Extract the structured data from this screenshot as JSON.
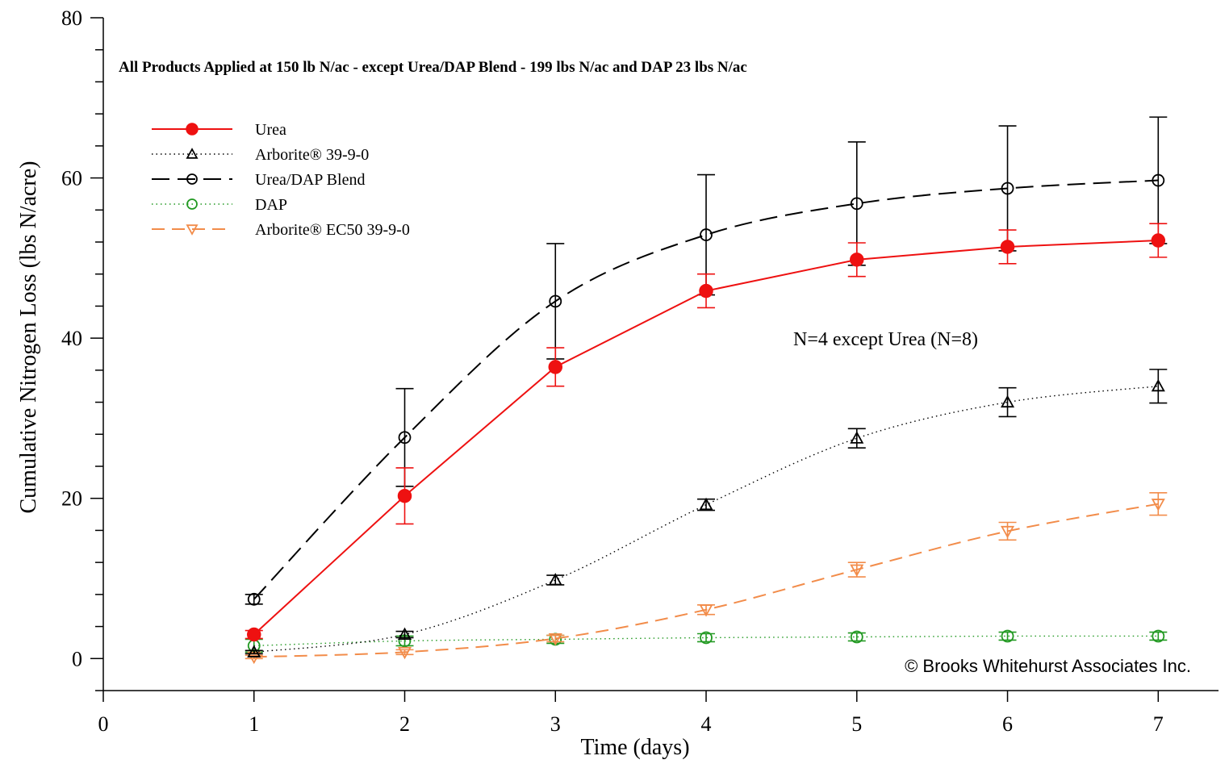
{
  "chart_data": {
    "type": "line",
    "title": "",
    "subtitle": "All Products Applied at 150 lb N/ac - except Urea/DAP Blend - 199 lbs N/ac and DAP 23 lbs N/ac",
    "xlabel": "Time (days)",
    "ylabel": "Cumulative Nitrogen Loss (lbs N/acre)",
    "xlim": [
      0,
      7.4
    ],
    "ylim": [
      -4,
      80
    ],
    "xticks": [
      0,
      1,
      2,
      3,
      4,
      5,
      6,
      7
    ],
    "yticks": [
      0,
      20,
      40,
      60,
      80
    ],
    "ytick_minor_step": 4,
    "grid": false,
    "legend_position": "top-left",
    "annotations": [
      {
        "text": "N=4 except Urea (N=8)",
        "x": 4.55,
        "y": 39.3
      },
      {
        "text": "© Brooks Whitehurst Associates Inc.",
        "x": 6.95,
        "y": -1.2
      }
    ],
    "series": [
      {
        "name": "Urea",
        "color": "#ee1111",
        "line_style": "solid",
        "marker": "circle-filled",
        "x": [
          1,
          2,
          3,
          4,
          5,
          6,
          7
        ],
        "y": [
          3.0,
          20.3,
          36.4,
          45.9,
          49.8,
          51.4,
          52.2
        ],
        "err": [
          0.5,
          3.5,
          2.4,
          2.1,
          2.1,
          2.1,
          2.1
        ]
      },
      {
        "name": "Arborite® 39-9-0",
        "color": "#000000",
        "line_style": "dotted",
        "marker": "triangle-up-open",
        "x": [
          1,
          2,
          3,
          4,
          5,
          6,
          7
        ],
        "y": [
          0.8,
          3.0,
          9.8,
          19.2,
          27.5,
          32.0,
          34.0
        ],
        "err": [
          0.2,
          0.4,
          0.6,
          0.7,
          1.2,
          1.8,
          2.1
        ]
      },
      {
        "name": "Urea/DAP Blend",
        "color": "#000000",
        "line_style": "long-dash",
        "marker": "circle-open",
        "x": [
          1,
          2,
          3,
          4,
          5,
          6,
          7
        ],
        "y": [
          7.4,
          27.6,
          44.6,
          52.9,
          56.8,
          58.7,
          59.7
        ],
        "err": [
          0.6,
          6.1,
          7.2,
          7.5,
          7.7,
          7.8,
          7.9
        ]
      },
      {
        "name": "DAP",
        "color": "#229922",
        "line_style": "dotted",
        "marker": "circle-open",
        "x": [
          1,
          2,
          3,
          4,
          5,
          6,
          7
        ],
        "y": [
          1.6,
          2.2,
          2.4,
          2.6,
          2.7,
          2.8,
          2.8
        ],
        "err": [
          0.8,
          0.6,
          0.5,
          0.5,
          0.5,
          0.5,
          0.5
        ]
      },
      {
        "name": "Arborite® EC50 39-9-0",
        "color": "#f28c4a",
        "line_style": "dashed",
        "marker": "triangle-down-open",
        "x": [
          1,
          2,
          3,
          4,
          5,
          6,
          7
        ],
        "y": [
          0.2,
          0.8,
          2.5,
          6.1,
          11.1,
          15.9,
          19.3
        ],
        "err": [
          0.2,
          0.3,
          0.4,
          0.6,
          0.9,
          1.1,
          1.4
        ]
      }
    ]
  }
}
